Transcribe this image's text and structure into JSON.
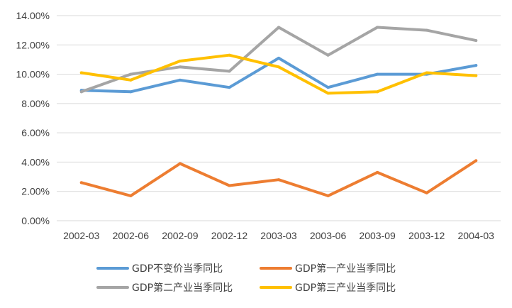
{
  "chart_data": {
    "type": "line",
    "title": "",
    "xlabel": "",
    "ylabel": "",
    "categories": [
      "2002-03",
      "2002-06",
      "2002-09",
      "2002-12",
      "2003-03",
      "2003-06",
      "2003-09",
      "2003-12",
      "2004-03"
    ],
    "y_ticks": [
      "0.00%",
      "2.00%",
      "4.00%",
      "6.00%",
      "8.00%",
      "10.00%",
      "12.00%",
      "14.00%"
    ],
    "ylim": [
      0,
      14
    ],
    "y_unit": "%",
    "grid": true,
    "legend_position": "bottom",
    "series": [
      {
        "name": "GDP不变价当季同比",
        "color": "#5b9bd5",
        "values": [
          8.9,
          8.8,
          9.6,
          9.1,
          11.1,
          9.1,
          10.0,
          10.0,
          10.6
        ]
      },
      {
        "name": "GDP第一产业当季同比",
        "color": "#ed7d31",
        "values": [
          2.6,
          1.7,
          3.9,
          2.4,
          2.8,
          1.7,
          3.3,
          1.9,
          4.1
        ]
      },
      {
        "name": "GDP第二产业当季同比",
        "color": "#a5a5a5",
        "values": [
          8.8,
          10.0,
          10.5,
          10.2,
          13.2,
          11.3,
          13.2,
          13.0,
          12.3
        ]
      },
      {
        "name": "GDP第三产业当季同比",
        "color": "#ffc000",
        "values": [
          10.1,
          9.6,
          10.9,
          11.3,
          10.5,
          8.7,
          8.8,
          10.1,
          9.9
        ]
      }
    ]
  }
}
